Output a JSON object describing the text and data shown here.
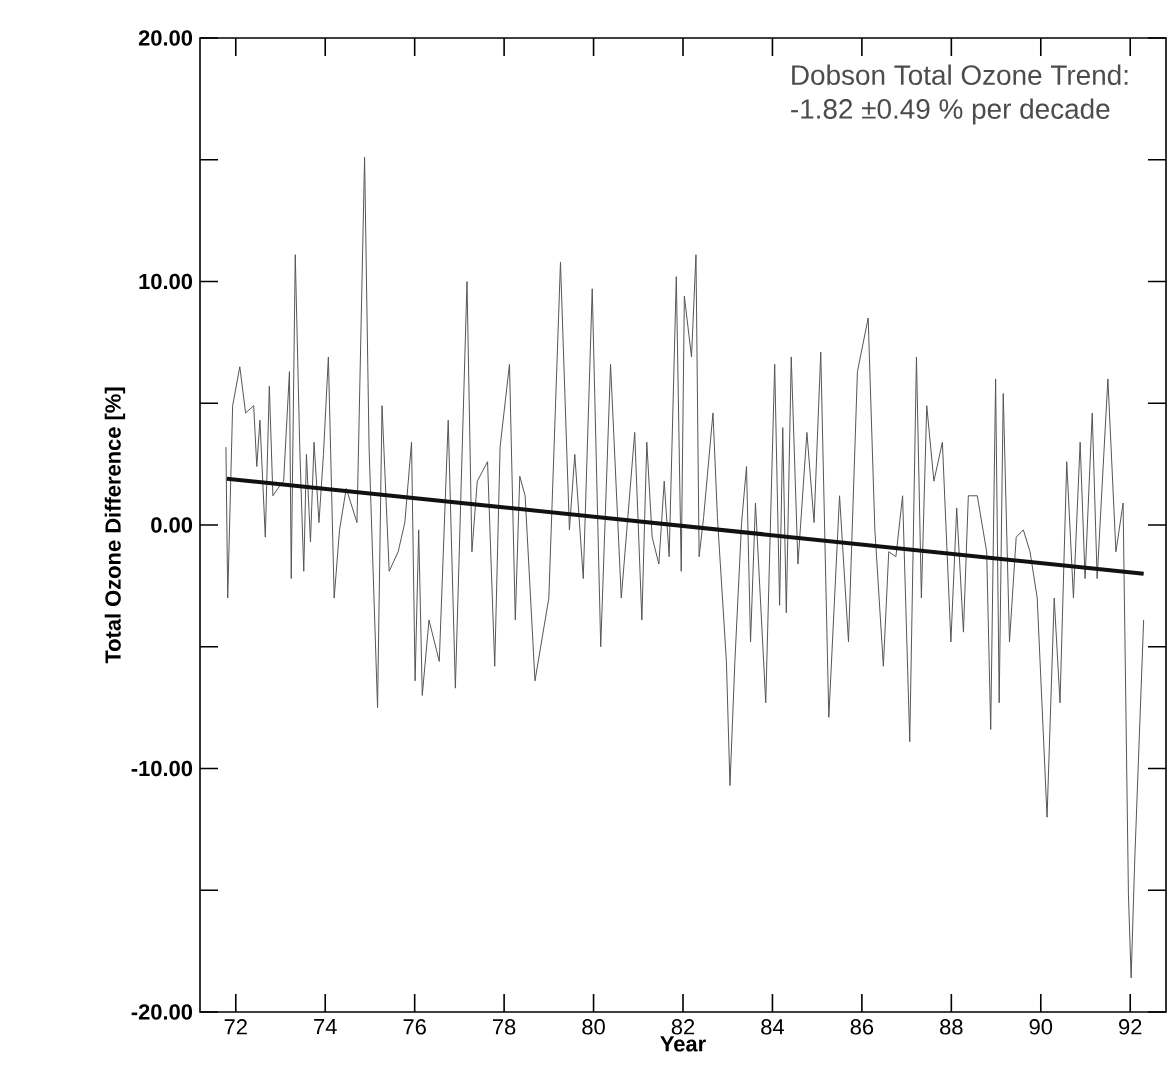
{
  "chart_data": {
    "type": "line",
    "xlabel": "Year",
    "ylabel": "Total Ozone Difference [%]",
    "annotations": [
      "Dobson Total Ozone Trend:",
      "-1.82 ±0.49 % per decade"
    ],
    "xlim": [
      71.2,
      92.8
    ],
    "ylim": [
      -20,
      20
    ],
    "xticks": [
      72,
      74,
      76,
      78,
      80,
      82,
      84,
      86,
      88,
      90,
      92
    ],
    "yticks": [
      {
        "value": -20,
        "label": "-20.00"
      },
      {
        "value": -15,
        "label": null
      },
      {
        "value": -10,
        "label": "-10.00"
      },
      {
        "value": -5,
        "label": null
      },
      {
        "value": 0,
        "label": "0.00"
      },
      {
        "value": 5,
        "label": null
      },
      {
        "value": 10,
        "label": "10.00"
      },
      {
        "value": 15,
        "label": null
      },
      {
        "value": 20,
        "label": "20.00"
      }
    ],
    "marker": "none",
    "line_style": "solid",
    "series": [
      {
        "color": "#555555",
        "x": [
          71.78,
          71.82,
          71.93,
          72.09,
          72.22,
          72.4,
          72.47,
          72.54,
          72.66,
          72.75,
          72.83,
          72.94,
          73.07,
          73.2,
          73.24,
          73.33,
          73.43,
          73.52,
          73.58,
          73.67,
          73.75,
          73.86,
          73.96,
          74.07,
          74.2,
          74.32,
          74.47,
          74.71,
          74.88,
          74.98,
          75.17,
          75.27,
          75.43,
          75.63,
          75.78,
          75.93,
          76.01,
          76.09,
          76.17,
          76.32,
          76.55,
          76.75,
          76.91,
          77.17,
          77.28,
          77.4,
          77.63,
          77.79,
          77.91,
          78.12,
          78.25,
          78.35,
          78.47,
          78.69,
          79.0,
          79.26,
          79.46,
          79.58,
          79.77,
          79.97,
          80.16,
          80.38,
          80.62,
          80.92,
          81.08,
          81.19,
          81.31,
          81.46,
          81.58,
          81.69,
          81.85,
          81.96,
          82.03,
          82.19,
          82.29,
          82.36,
          82.46,
          82.67,
          82.77,
          82.97,
          83.05,
          83.16,
          83.31,
          83.42,
          83.51,
          83.62,
          83.85,
          84.05,
          84.16,
          84.23,
          84.31,
          84.42,
          84.57,
          84.77,
          84.93,
          85.08,
          85.26,
          85.5,
          85.7,
          85.9,
          86.14,
          86.29,
          86.48,
          86.6,
          86.76,
          86.91,
          87.07,
          87.22,
          87.33,
          87.45,
          87.61,
          87.8,
          87.99,
          88.12,
          88.27,
          88.38,
          88.58,
          88.79,
          88.88,
          88.99,
          89.07,
          89.16,
          89.3,
          89.45,
          89.61,
          89.76,
          89.92,
          90.14,
          90.3,
          90.43,
          90.58,
          90.73,
          90.88,
          90.99,
          91.15,
          91.26,
          91.5,
          91.68,
          91.84,
          91.96,
          92.02,
          92.1,
          92.3
        ],
        "values": [
          3.2,
          -3.0,
          4.9,
          6.5,
          4.6,
          4.9,
          2.4,
          4.3,
          -0.5,
          5.7,
          1.2,
          1.5,
          1.8,
          6.3,
          -2.2,
          11.1,
          3.2,
          -1.9,
          2.9,
          -0.7,
          3.4,
          0.1,
          2.9,
          6.9,
          -3.0,
          -0.2,
          1.5,
          0.1,
          15.1,
          3.2,
          -7.5,
          4.9,
          -1.9,
          -1.1,
          0.1,
          3.4,
          -6.4,
          -0.2,
          -7.0,
          -3.9,
          -5.6,
          4.3,
          -6.7,
          10.0,
          -1.1,
          1.8,
          2.6,
          -5.8,
          3.2,
          6.6,
          -3.9,
          2.0,
          1.2,
          -6.4,
          -3.0,
          10.8,
          -0.2,
          2.9,
          -2.2,
          9.7,
          -5.0,
          6.6,
          -3.0,
          3.8,
          -3.9,
          3.4,
          -0.5,
          -1.6,
          1.8,
          -1.3,
          10.2,
          -1.9,
          9.4,
          6.9,
          11.1,
          -1.3,
          0.3,
          4.6,
          0.3,
          -5.6,
          -10.7,
          -5.6,
          0.1,
          2.4,
          -4.8,
          0.9,
          -7.3,
          6.6,
          -3.3,
          4.0,
          -3.6,
          6.9,
          -1.6,
          3.8,
          0.1,
          7.1,
          -7.9,
          1.2,
          -4.8,
          6.3,
          8.5,
          -0.2,
          -5.8,
          -1.1,
          -1.3,
          1.2,
          -8.9,
          6.9,
          -3.0,
          4.9,
          1.8,
          3.4,
          -4.8,
          0.7,
          -4.4,
          1.2,
          1.2,
          -1.1,
          -8.4,
          6.0,
          -7.3,
          5.4,
          -4.8,
          -0.5,
          -0.2,
          -1.1,
          -3.0,
          -12.0,
          -3.0,
          -7.3,
          2.6,
          -3.0,
          3.4,
          -2.2,
          4.6,
          -2.2,
          6.0,
          -1.1,
          0.9,
          -15.2,
          -18.6,
          -13.8,
          -3.9
        ]
      },
      {
        "type": "line",
        "color": "#111111",
        "x": [
          71.8,
          92.3
        ],
        "values": [
          1.9,
          -2.0
        ]
      }
    ]
  }
}
